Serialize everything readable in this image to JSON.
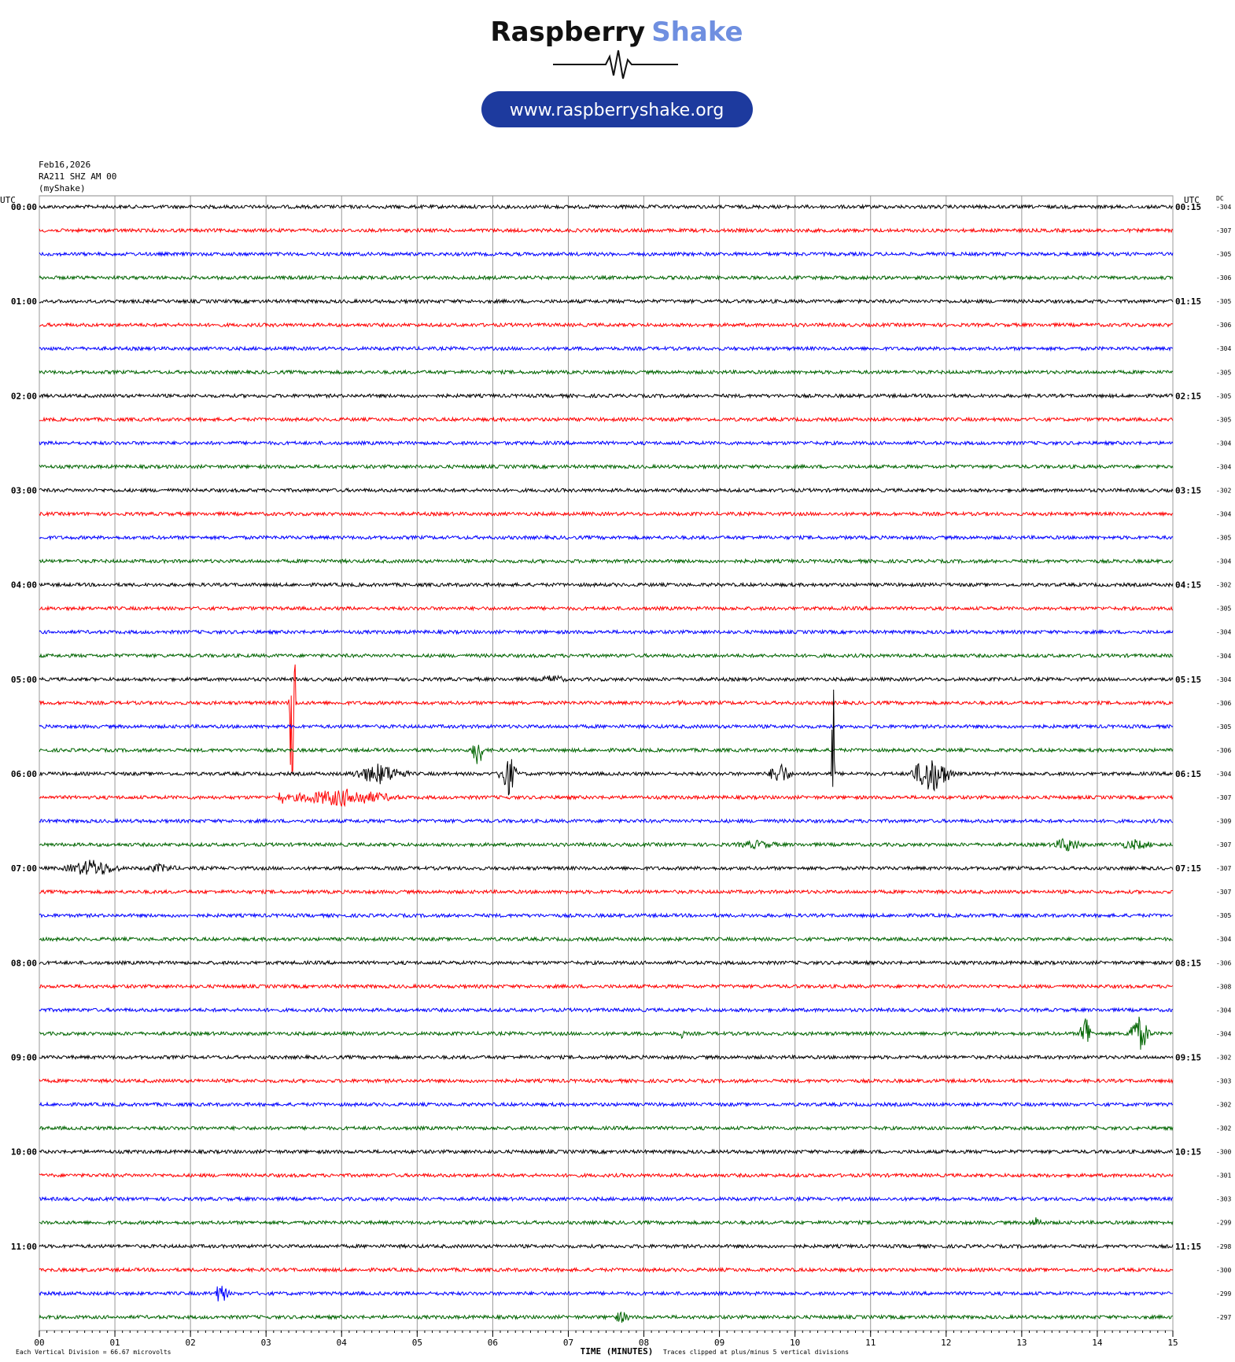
{
  "header": {
    "brand_1": "Raspberry",
    "brand_2": "Shake",
    "url": "www.raspberryshake.org"
  },
  "chart_data": {
    "type": "seismogram",
    "date": "Feb16,2026",
    "station": "RA211 SHZ AM 00",
    "source": "(myShake)",
    "left_axis_label": "UTC",
    "right_axis_label": "UTC",
    "dc_label": "DC",
    "xlabel": "TIME (MINUTES)",
    "scale_note": "Each Vertical Division =   66.67 microvolts",
    "clip_note": "Traces clipped at plus/minus 5 vertical divisions",
    "colors": [
      "#000000",
      "#ff0000",
      "#0000ff",
      "#006400"
    ],
    "xlim": [
      0,
      15
    ],
    "xticks": [
      {
        "value": 0,
        "label": "00"
      },
      {
        "value": 1,
        "label": "01"
      },
      {
        "value": 2,
        "label": "02"
      },
      {
        "value": 3,
        "label": "03"
      },
      {
        "value": 4,
        "label": "04"
      },
      {
        "value": 5,
        "label": "05"
      },
      {
        "value": 6,
        "label": "06"
      },
      {
        "value": 7,
        "label": "07"
      },
      {
        "value": 8,
        "label": "08"
      },
      {
        "value": 9,
        "label": "09"
      },
      {
        "value": 10,
        "label": "10"
      },
      {
        "value": 11,
        "label": "11"
      },
      {
        "value": 12,
        "label": "12"
      },
      {
        "value": 13,
        "label": "13"
      },
      {
        "value": 14,
        "label": "14"
      },
      {
        "value": 15,
        "label": "15"
      }
    ],
    "left_labels": [
      "00:00",
      null,
      null,
      null,
      "01:00",
      null,
      null,
      null,
      "02:00",
      null,
      null,
      null,
      "03:00",
      null,
      null,
      null,
      "04:00",
      null,
      null,
      null,
      "05:00",
      null,
      null,
      null,
      "06:00",
      null,
      null,
      null,
      "07:00",
      null,
      null,
      null,
      "08:00",
      null,
      null,
      null,
      "09:00",
      null,
      null,
      null,
      "10:00",
      null,
      null,
      null,
      "11:00",
      null,
      null,
      null
    ],
    "right_labels": [
      "00:15",
      null,
      null,
      null,
      "01:15",
      null,
      null,
      null,
      "02:15",
      null,
      null,
      null,
      "03:15",
      null,
      null,
      null,
      "04:15",
      null,
      null,
      null,
      "05:15",
      null,
      null,
      null,
      "06:15",
      null,
      null,
      null,
      "07:15",
      null,
      null,
      null,
      "08:15",
      null,
      null,
      null,
      "09:15",
      null,
      null,
      null,
      "10:15",
      null,
      null,
      null,
      "11:15",
      null,
      null,
      null
    ],
    "dc_offsets": [
      -304,
      -307,
      -305,
      -306,
      -305,
      -306,
      -304,
      -305,
      -305,
      -305,
      -304,
      -304,
      -302,
      -304,
      -305,
      -304,
      -302,
      -305,
      -304,
      -304,
      -304,
      -306,
      -305,
      -306,
      -304,
      -307,
      -309,
      -307,
      -307,
      -307,
      -305,
      -304,
      -306,
      -308,
      -304,
      -304,
      -302,
      -303,
      -302,
      -302,
      -300,
      -301,
      -303,
      -299,
      -298,
      -300,
      -299,
      -297
    ]
  }
}
